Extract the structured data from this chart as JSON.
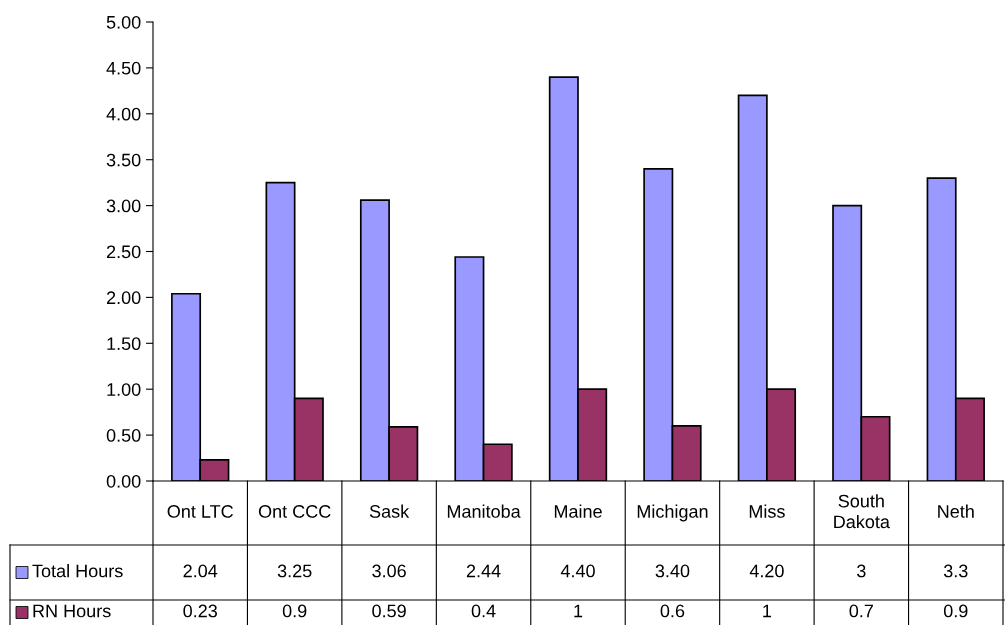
{
  "chart_data": {
    "type": "bar",
    "categories": [
      "Ont LTC",
      "Ont CCC",
      "Sask",
      "Manitoba",
      "Maine",
      "Michigan",
      "Miss",
      "South\nDakota",
      "Neth"
    ],
    "series": [
      {
        "name": "Total Hours",
        "color": "#9999ff",
        "values": [
          2.04,
          3.25,
          3.06,
          2.44,
          4.4,
          3.4,
          4.2,
          3,
          3.3
        ],
        "value_labels": [
          "2.04",
          "3.25",
          "3.06",
          "2.44",
          "4.40",
          "3.40",
          "4.20",
          "3",
          "3.3"
        ]
      },
      {
        "name": "RN Hours",
        "color": "#993366",
        "values": [
          0.23,
          0.9,
          0.59,
          0.4,
          1,
          0.6,
          1,
          0.7,
          0.9
        ],
        "value_labels": [
          "0.23",
          "0.9",
          "0.59",
          "0.4",
          "1",
          "0.6",
          "1",
          "0.7",
          "0.9"
        ]
      }
    ],
    "ylim": [
      0,
      5
    ],
    "yticks": [
      {
        "value": 0,
        "label": "0.00"
      },
      {
        "value": 0.5,
        "label": "0.50"
      },
      {
        "value": 1,
        "label": "1.00"
      },
      {
        "value": 1.5,
        "label": "1.50"
      },
      {
        "value": 2,
        "label": "2.00"
      },
      {
        "value": 2.5,
        "label": "2.50"
      },
      {
        "value": 3,
        "label": "3.00"
      },
      {
        "value": 3.5,
        "label": "3.50"
      },
      {
        "value": 4,
        "label": "4.00"
      },
      {
        "value": 4.5,
        "label": "4.50"
      },
      {
        "value": 5,
        "label": "5.00"
      }
    ],
    "legend": "bottom",
    "grid": false
  }
}
